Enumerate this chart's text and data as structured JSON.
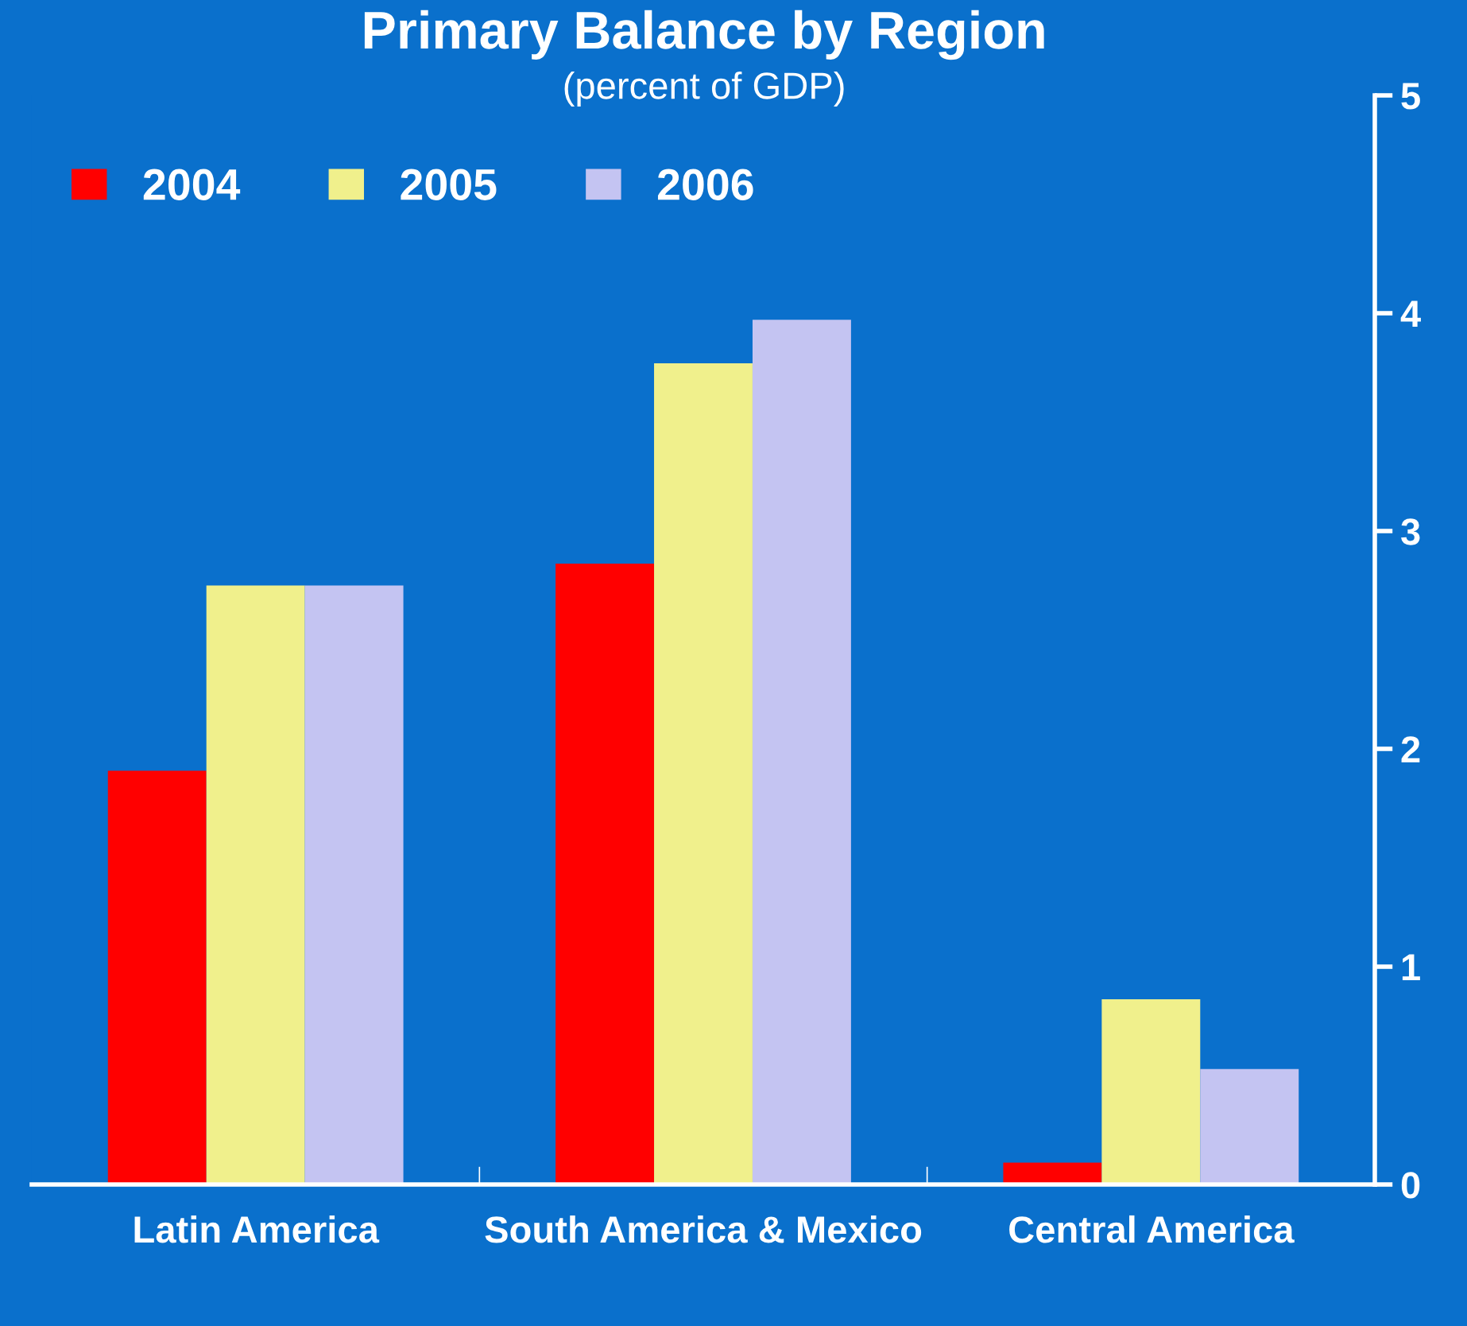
{
  "chart_data": {
    "type": "bar",
    "title": "Primary Balance by Region",
    "subtitle": "(percent of GDP)",
    "categories": [
      "Latin America",
      "South America & Mexico",
      "Central America"
    ],
    "series": [
      {
        "name": "2004",
        "color": "#ff0000",
        "values": [
          1.9,
          2.85,
          0.1
        ]
      },
      {
        "name": "2005",
        "color": "#f0f08c",
        "values": [
          2.75,
          3.77,
          0.85
        ]
      },
      {
        "name": "2006",
        "color": "#c4c4f2",
        "values": [
          2.75,
          3.97,
          0.53
        ]
      }
    ],
    "ylim": [
      0,
      5
    ],
    "yticks": [
      0,
      1,
      2,
      3,
      4,
      5
    ],
    "grid": false,
    "legend": "top left"
  }
}
